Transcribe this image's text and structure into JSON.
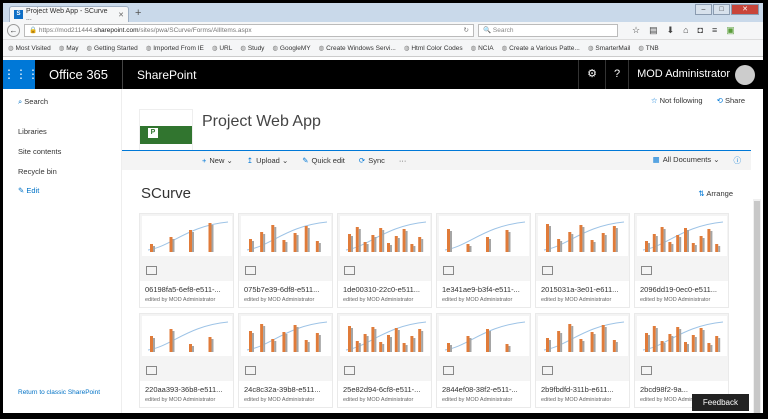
{
  "browser": {
    "tab_title": "Project Web App - SCurve ...",
    "url_host_prefix": "https://mod211444.",
    "url_host": "sharepoint.com",
    "url_path": "/sites/pwa/SCurve/Forms/AllItems.aspx",
    "search_placeholder": "Search",
    "bookmarks": [
      "Most Visited",
      "May",
      "Getting Started",
      "Imported From IE",
      "URL",
      "Study",
      "GoogleMY",
      "Create Windows Servi...",
      "Html Color Codes",
      "NCIA",
      "Create a Various Patte...",
      "SmarterMail",
      "TNB"
    ]
  },
  "suite": {
    "brand": "Office 365",
    "app": "SharePoint",
    "user": "MOD Administrator"
  },
  "nav": {
    "search": "Search",
    "libraries": "Libraries",
    "site_contents": "Site contents",
    "recycle_bin": "Recycle bin",
    "edit": "Edit",
    "return": "Return to classic SharePoint"
  },
  "site": {
    "title": "Project Web App",
    "not_following": "Not following",
    "share": "Share"
  },
  "toolbar": {
    "new": "New",
    "upload": "Upload",
    "quick_edit": "Quick edit",
    "sync": "Sync",
    "more": "···",
    "view": "All Documents"
  },
  "library": {
    "title": "SCurve",
    "arrange": "Arrange",
    "items": [
      {
        "name": "06198fa5-6ef8-e511-...",
        "editor": "edited by MOD Administrator"
      },
      {
        "name": "075b7e39-6df8-e511...",
        "editor": "edited by MOD Administrator"
      },
      {
        "name": "1de00310-22c0-e511...",
        "editor": "edited by MOD Administrator"
      },
      {
        "name": "1e341ae9-b3f4-e511-...",
        "editor": "edited by MOD Administrator"
      },
      {
        "name": "2015031a-3e01-e611...",
        "editor": "edited by MOD Administrator"
      },
      {
        "name": "2096dd19-0ec0-e511...",
        "editor": "edited by MOD Administrator"
      },
      {
        "name": "220aa393-36b8-e511...",
        "editor": "edited by MOD Administrator"
      },
      {
        "name": "24c8c32a-39b8-e511...",
        "editor": "edited by MOD Administrator"
      },
      {
        "name": "25e82d94-6cf8-e511-...",
        "editor": "edited by MOD Administrator"
      },
      {
        "name": "2844ef08-38f2-e511-...",
        "editor": "edited by MOD Administrator"
      },
      {
        "name": "2b9fbdfd-311b-e611...",
        "editor": "edited by MOD Administrator"
      },
      {
        "name": "2bcd98f2-9a...",
        "editor": "edited by MOD Administrator"
      }
    ]
  },
  "feedback": "Feedback",
  "colors": {
    "accent": "#0078d7",
    "bar_orange": "#e07b39",
    "bar_gray": "#a5a5a5",
    "curve": "#9dc3e6"
  }
}
